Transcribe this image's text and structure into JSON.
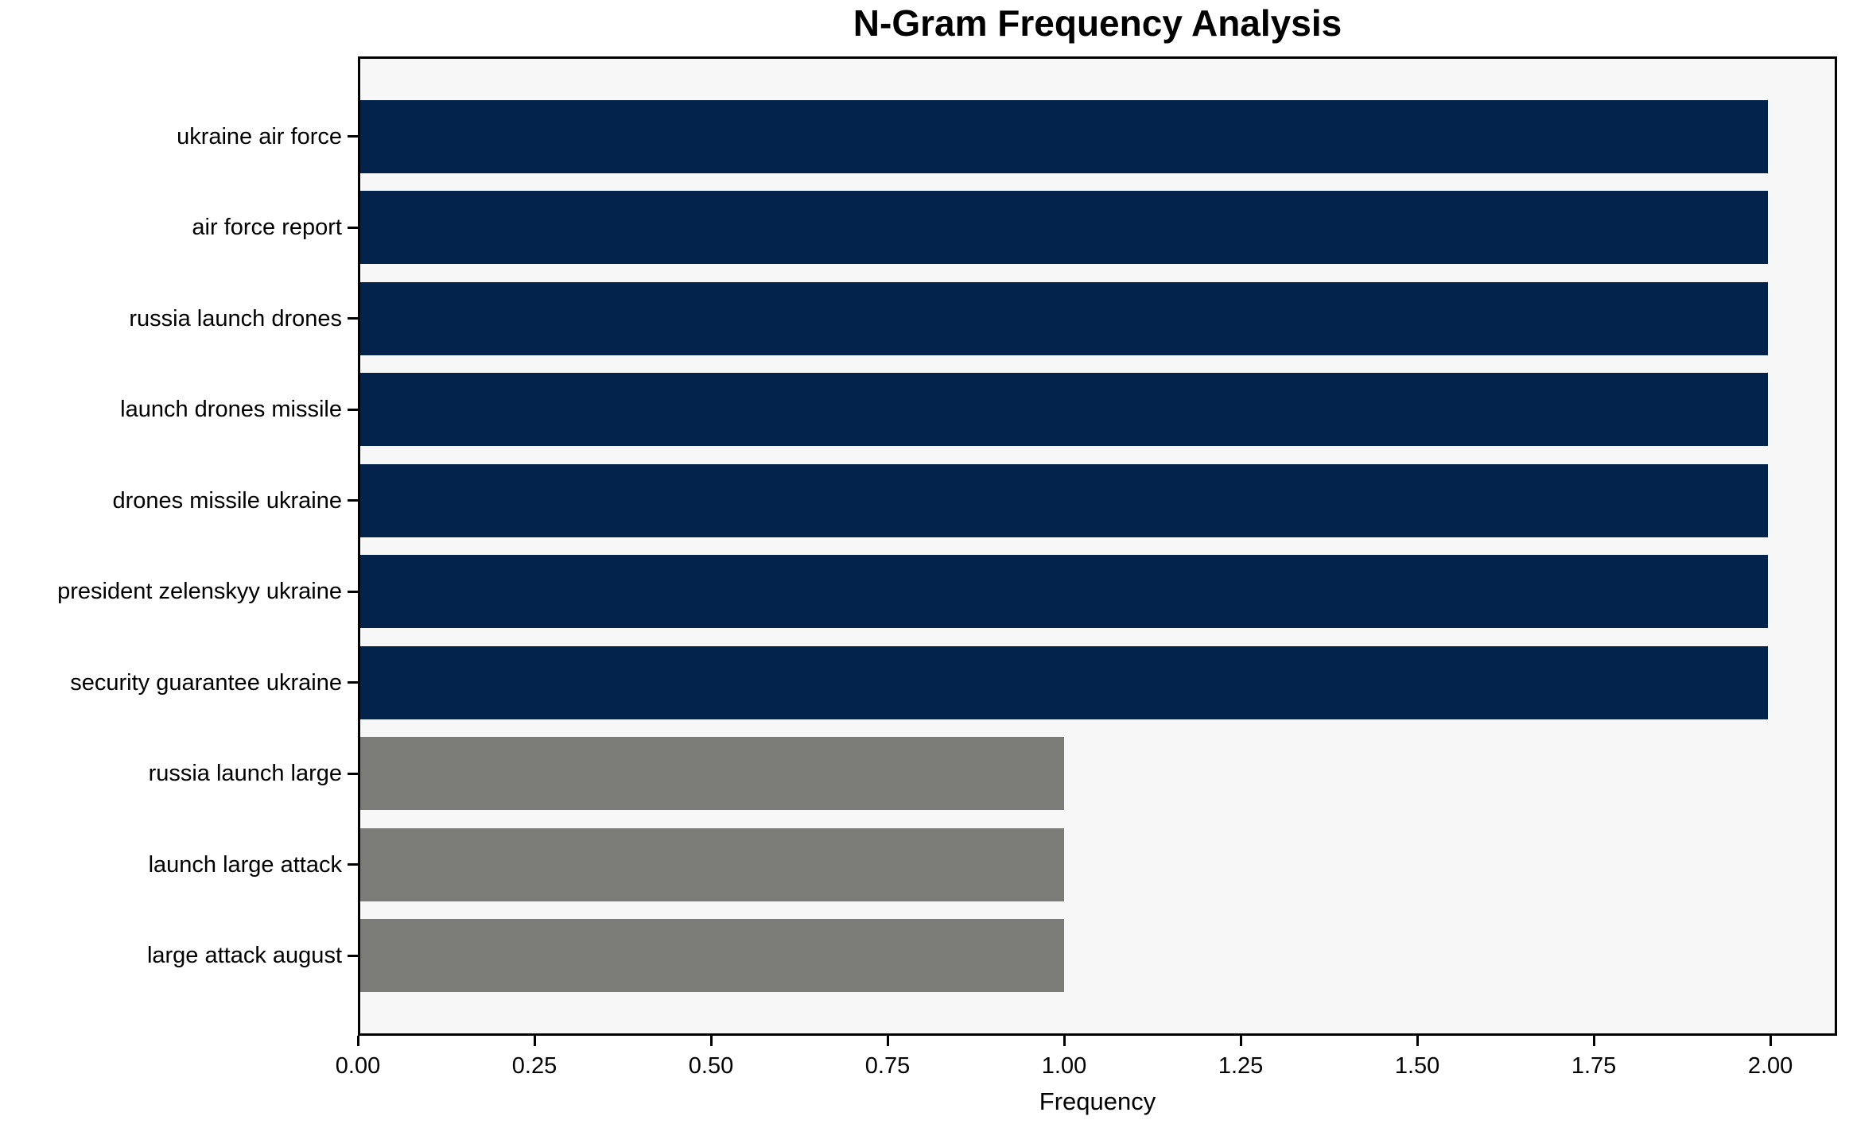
{
  "chart_data": {
    "type": "bar",
    "orientation": "horizontal",
    "title": "N-Gram Frequency Analysis",
    "xlabel": "Frequency",
    "ylabel": "",
    "categories": [
      "ukraine air force",
      "air force report",
      "russia launch drones",
      "launch drones missile",
      "drones missile ukraine",
      "president zelenskyy ukraine",
      "security guarantee ukraine",
      "russia launch large",
      "launch large attack",
      "large attack august"
    ],
    "values": [
      2,
      2,
      2,
      2,
      2,
      2,
      2,
      1,
      1,
      1
    ],
    "bar_colors": [
      "#04234c",
      "#04234c",
      "#04234c",
      "#04234c",
      "#04234c",
      "#04234c",
      "#04234c",
      "#7b7b78",
      "#7b7b78",
      "#7b7b78"
    ],
    "xlim": [
      0,
      2.0945
    ],
    "x_ticks": [
      0.0,
      0.25,
      0.5,
      0.75,
      1.0,
      1.25,
      1.5,
      1.75,
      2.0
    ],
    "x_tick_labels": [
      "0.00",
      "0.25",
      "0.50",
      "0.75",
      "1.00",
      "1.25",
      "1.50",
      "1.75",
      "2.00"
    ],
    "grid": false,
    "legend": null,
    "colors": {
      "bar_primary": "#04234c",
      "bar_secondary": "#7b7b78",
      "plot_background": "#f7f7f7",
      "figure_background": "#ffffff",
      "spine": "#000000",
      "text": "#000000"
    }
  }
}
